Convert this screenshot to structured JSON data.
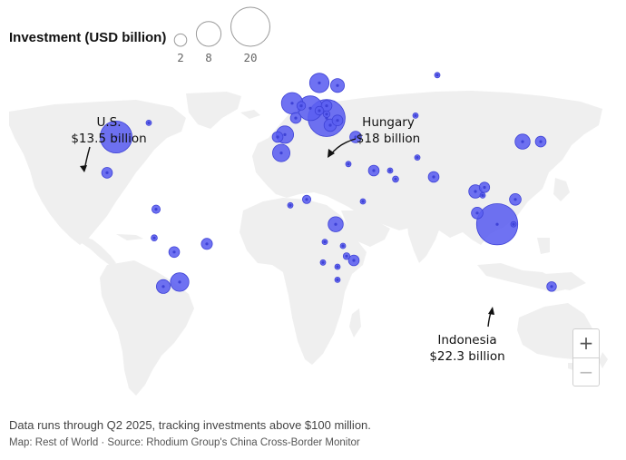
{
  "legend": {
    "title": "Investment (USD billion)",
    "sizes": [
      2,
      8,
      20
    ],
    "labels": [
      "2",
      "8",
      "20"
    ]
  },
  "annotations": {
    "us": {
      "line1": "U.S.",
      "line2": "$13.5 billion"
    },
    "hungary": {
      "line1": "Hungary",
      "line2": "$18 billion"
    },
    "indonesia": {
      "line1": "Indonesia",
      "line2": "$22.3 billion"
    }
  },
  "zoom": {
    "in_label": "+",
    "out_label": "−"
  },
  "footer": {
    "note": "Data runs through Q2 2025, tracking investments above $100 million.",
    "credit": "Map: Rest of World · Source: Rhodium Group's China Cross-Border Monitor"
  },
  "colors": {
    "bubble_fill": "#5b5ff0",
    "bubble_stroke": "#3e42d6",
    "land": "#efefef",
    "legend_stroke": "#9a9a9a"
  },
  "locations": [
    {
      "name": "United States",
      "value": 13.5,
      "lon": -97,
      "lat": 39
    },
    {
      "name": "Canada (Toronto)",
      "value": 0.2,
      "lon": -79,
      "lat": 45
    },
    {
      "name": "Mexico",
      "value": 1.5,
      "lon": -102,
      "lat": 23
    },
    {
      "name": "Colombia",
      "value": 0.9,
      "lon": -75,
      "lat": 5
    },
    {
      "name": "Peru",
      "value": 0.5,
      "lon": -76,
      "lat": -10
    },
    {
      "name": "Bolivia",
      "value": 1.5,
      "lon": -65,
      "lat": -17
    },
    {
      "name": "Brazil",
      "value": 1.6,
      "lon": -47,
      "lat": -13
    },
    {
      "name": "Chile",
      "value": 2.5,
      "lon": -71,
      "lat": -33
    },
    {
      "name": "Argentina",
      "value": 4.5,
      "lon": -62,
      "lat": -31
    },
    {
      "name": "Morocco",
      "value": 4.0,
      "lon": -6,
      "lat": 32
    },
    {
      "name": "Portugal",
      "value": 1.5,
      "lon": -8,
      "lat": 39
    },
    {
      "name": "Spain",
      "value": 4.0,
      "lon": -4,
      "lat": 40
    },
    {
      "name": "United Kingdom",
      "value": 6.0,
      "lon": 0,
      "lat": 53
    },
    {
      "name": "France",
      "value": 1.5,
      "lon": 2,
      "lat": 47
    },
    {
      "name": "Netherlands",
      "value": 1.0,
      "lon": 5,
      "lat": 52
    },
    {
      "name": "Germany",
      "value": 8.0,
      "lon": 10,
      "lat": 51
    },
    {
      "name": "Sweden",
      "value": 5.0,
      "lon": 15,
      "lat": 61
    },
    {
      "name": "Finland",
      "value": 2.5,
      "lon": 25,
      "lat": 60
    },
    {
      "name": "Poland",
      "value": 1.5,
      "lon": 19,
      "lat": 52
    },
    {
      "name": "Czechia",
      "value": 1.0,
      "lon": 15,
      "lat": 50
    },
    {
      "name": "Slovakia",
      "value": 0.6,
      "lon": 19,
      "lat": 48.6
    },
    {
      "name": "Hungary",
      "value": 18.0,
      "lon": 19,
      "lat": 47
    },
    {
      "name": "Serbia",
      "value": 2.0,
      "lon": 21,
      "lat": 44
    },
    {
      "name": "Romania",
      "value": 1.5,
      "lon": 25,
      "lat": 46
    },
    {
      "name": "Turkey",
      "value": 1.8,
      "lon": 35,
      "lat": 39
    },
    {
      "name": "Egypt",
      "value": 0.4,
      "lon": 31,
      "lat": 27
    },
    {
      "name": "Saudi Arabia",
      "value": 1.5,
      "lon": 45,
      "lat": 24
    },
    {
      "name": "UAE",
      "value": 0.3,
      "lon": 54,
      "lat": 24
    },
    {
      "name": "Oman",
      "value": 0.5,
      "lon": 57,
      "lat": 20
    },
    {
      "name": "Kazakhstan",
      "value": 0.3,
      "lon": 68,
      "lat": 48
    },
    {
      "name": "Russia",
      "value": 0.2,
      "lon": 80,
      "lat": 64
    },
    {
      "name": "Pakistan",
      "value": 0.3,
      "lon": 69,
      "lat": 30
    },
    {
      "name": "India",
      "value": 1.5,
      "lon": 78,
      "lat": 21
    },
    {
      "name": "Nigeria",
      "value": 0.9,
      "lon": 8,
      "lat": 10
    },
    {
      "name": "Ghana",
      "value": 0.3,
      "lon": -1,
      "lat": 7
    },
    {
      "name": "Ethiopia",
      "value": 0.3,
      "lon": 39,
      "lat": 9
    },
    {
      "name": "DR Congo",
      "value": 3.0,
      "lon": 24,
      "lat": -3
    },
    {
      "name": "Angola",
      "value": 0.3,
      "lon": 18,
      "lat": -12
    },
    {
      "name": "Zambia",
      "value": 0.4,
      "lon": 28,
      "lat": -14
    },
    {
      "name": "Zimbabwe",
      "value": 0.6,
      "lon": 30,
      "lat": -19
    },
    {
      "name": "Namibia",
      "value": 0.3,
      "lon": 17,
      "lat": -22
    },
    {
      "name": "Mozambique",
      "value": 1.5,
      "lon": 34,
      "lat": -21
    },
    {
      "name": "Botswana",
      "value": 0.3,
      "lon": 25,
      "lat": -24
    },
    {
      "name": "South Africa",
      "value": 0.3,
      "lon": 25,
      "lat": -30
    },
    {
      "name": "Thailand",
      "value": 2.3,
      "lon": 101,
      "lat": 14
    },
    {
      "name": "Cambodia",
      "value": 0.2,
      "lon": 105,
      "lat": 12
    },
    {
      "name": "Vietnam",
      "value": 1.4,
      "lon": 106,
      "lat": 16
    },
    {
      "name": "Malaysia",
      "value": 1.8,
      "lon": 102,
      "lat": 3
    },
    {
      "name": "Indonesia",
      "value": 22.3,
      "lon": 113,
      "lat": -3
    },
    {
      "name": "Indonesia (Sulawesi)",
      "value": 0.3,
      "lon": 122,
      "lat": -3
    },
    {
      "name": "Philippines",
      "value": 1.8,
      "lon": 123,
      "lat": 10
    },
    {
      "name": "South Korea",
      "value": 3.0,
      "lon": 127,
      "lat": 37
    },
    {
      "name": "Japan",
      "value": 1.5,
      "lon": 137,
      "lat": 37
    },
    {
      "name": "Australia",
      "value": 1.2,
      "lon": 143,
      "lat": -33
    }
  ]
}
